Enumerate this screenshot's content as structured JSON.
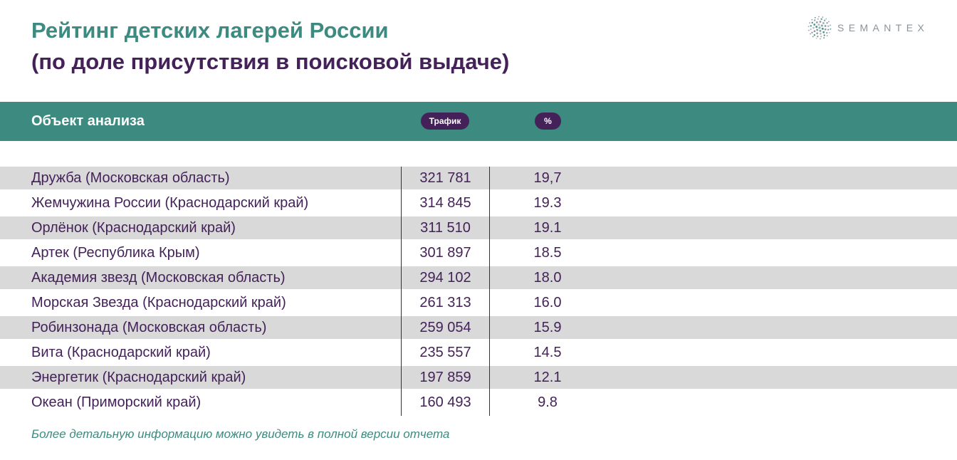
{
  "colors": {
    "teal": "#3d8b80",
    "purple": "#442259",
    "row_shade": "#d9d9d9",
    "logo_gray": "#8a939b"
  },
  "title": {
    "line1": "Рейтинг детских лагерей России",
    "line2": "(по доле присутствия в поисковой выдаче)"
  },
  "logo": {
    "icon": "dot-cluster-icon",
    "text": "SEMANTEX"
  },
  "table": {
    "header": {
      "object": "Объект анализа",
      "traffic": "Трафик",
      "percent": "%"
    },
    "rows": [
      {
        "name": "Дружба (Московская область)",
        "traffic": "321 781",
        "percent": "19,7"
      },
      {
        "name": "Жемчужина России (Краснодарский край)",
        "traffic": "314 845",
        "percent": "19.3"
      },
      {
        "name": "Орлёнок (Краснодарский край)",
        "traffic": "311 510",
        "percent": "19.1"
      },
      {
        "name": "Артек (Республика Крым)",
        "traffic": "301 897",
        "percent": "18.5"
      },
      {
        "name": "Академия звезд (Московская область)",
        "traffic": "294 102",
        "percent": "18.0"
      },
      {
        "name": "Морская Звезда (Краснодарский край)",
        "traffic": "261 313",
        "percent": "16.0"
      },
      {
        "name": "Робинзонада (Московская область)",
        "traffic": "259 054",
        "percent": "15.9"
      },
      {
        "name": "Вита (Краснодарский край)",
        "traffic": "235 557",
        "percent": "14.5"
      },
      {
        "name": "Энергетик (Краснодарский край)",
        "traffic": "197 859",
        "percent": "12.1"
      },
      {
        "name": "Океан (Приморский край)",
        "traffic": "160 493",
        "percent": "9.8"
      }
    ]
  },
  "footnote": "Более детальную информацию можно увидеть в полной версии отчета"
}
